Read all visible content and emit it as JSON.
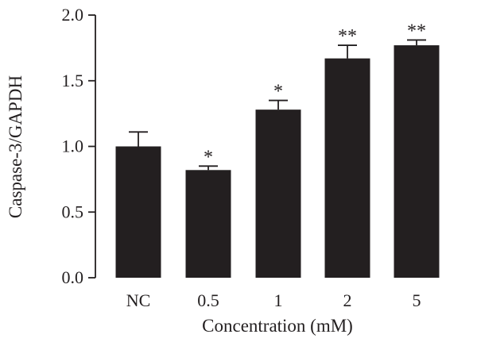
{
  "chart_data": {
    "type": "bar",
    "title": "",
    "xlabel": "Concentration (mM)",
    "ylabel": "Caspase-3/GAPDH",
    "ylim": [
      0,
      2.0
    ],
    "yticks": [
      0.0,
      0.5,
      1.0,
      1.5,
      2.0
    ],
    "ytick_labels": [
      "0.0",
      "0.5",
      "1.0",
      "1.5",
      "2.0"
    ],
    "grid": false,
    "legend": "none",
    "bar_color": "#231f20",
    "categories": [
      "NC",
      "0.5",
      "1",
      "2",
      "5"
    ],
    "values": [
      1.0,
      0.82,
      1.28,
      1.67,
      1.77
    ],
    "errors": [
      0.11,
      0.03,
      0.07,
      0.1,
      0.04
    ],
    "significance": [
      "",
      "*",
      "*",
      "**",
      "**"
    ]
  }
}
